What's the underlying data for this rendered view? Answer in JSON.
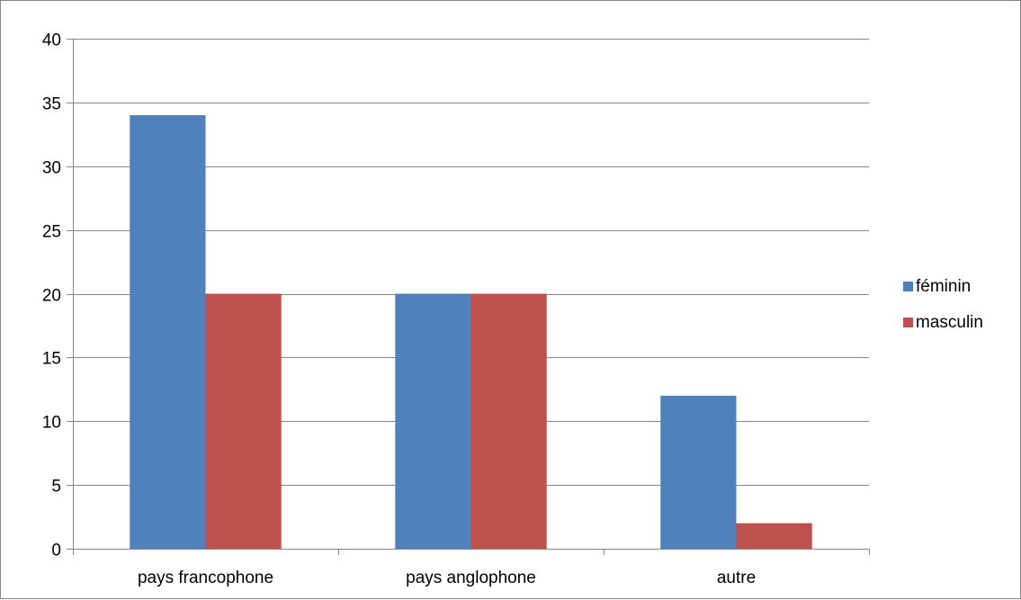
{
  "chart_data": {
    "type": "bar",
    "title": "",
    "xlabel": "",
    "ylabel": "",
    "categories": [
      "pays francophone",
      "pays anglophone",
      "autre"
    ],
    "series": [
      {
        "name": "féminin",
        "values": [
          34,
          20,
          12
        ],
        "color": "#4F81BD"
      },
      {
        "name": "masculin",
        "values": [
          20,
          20,
          2
        ],
        "color": "#C0504D"
      }
    ],
    "ylim": [
      0,
      40
    ],
    "yticks": [
      0,
      5,
      10,
      15,
      20,
      25,
      30,
      35,
      40
    ],
    "grid": true,
    "legend_position": "right"
  }
}
